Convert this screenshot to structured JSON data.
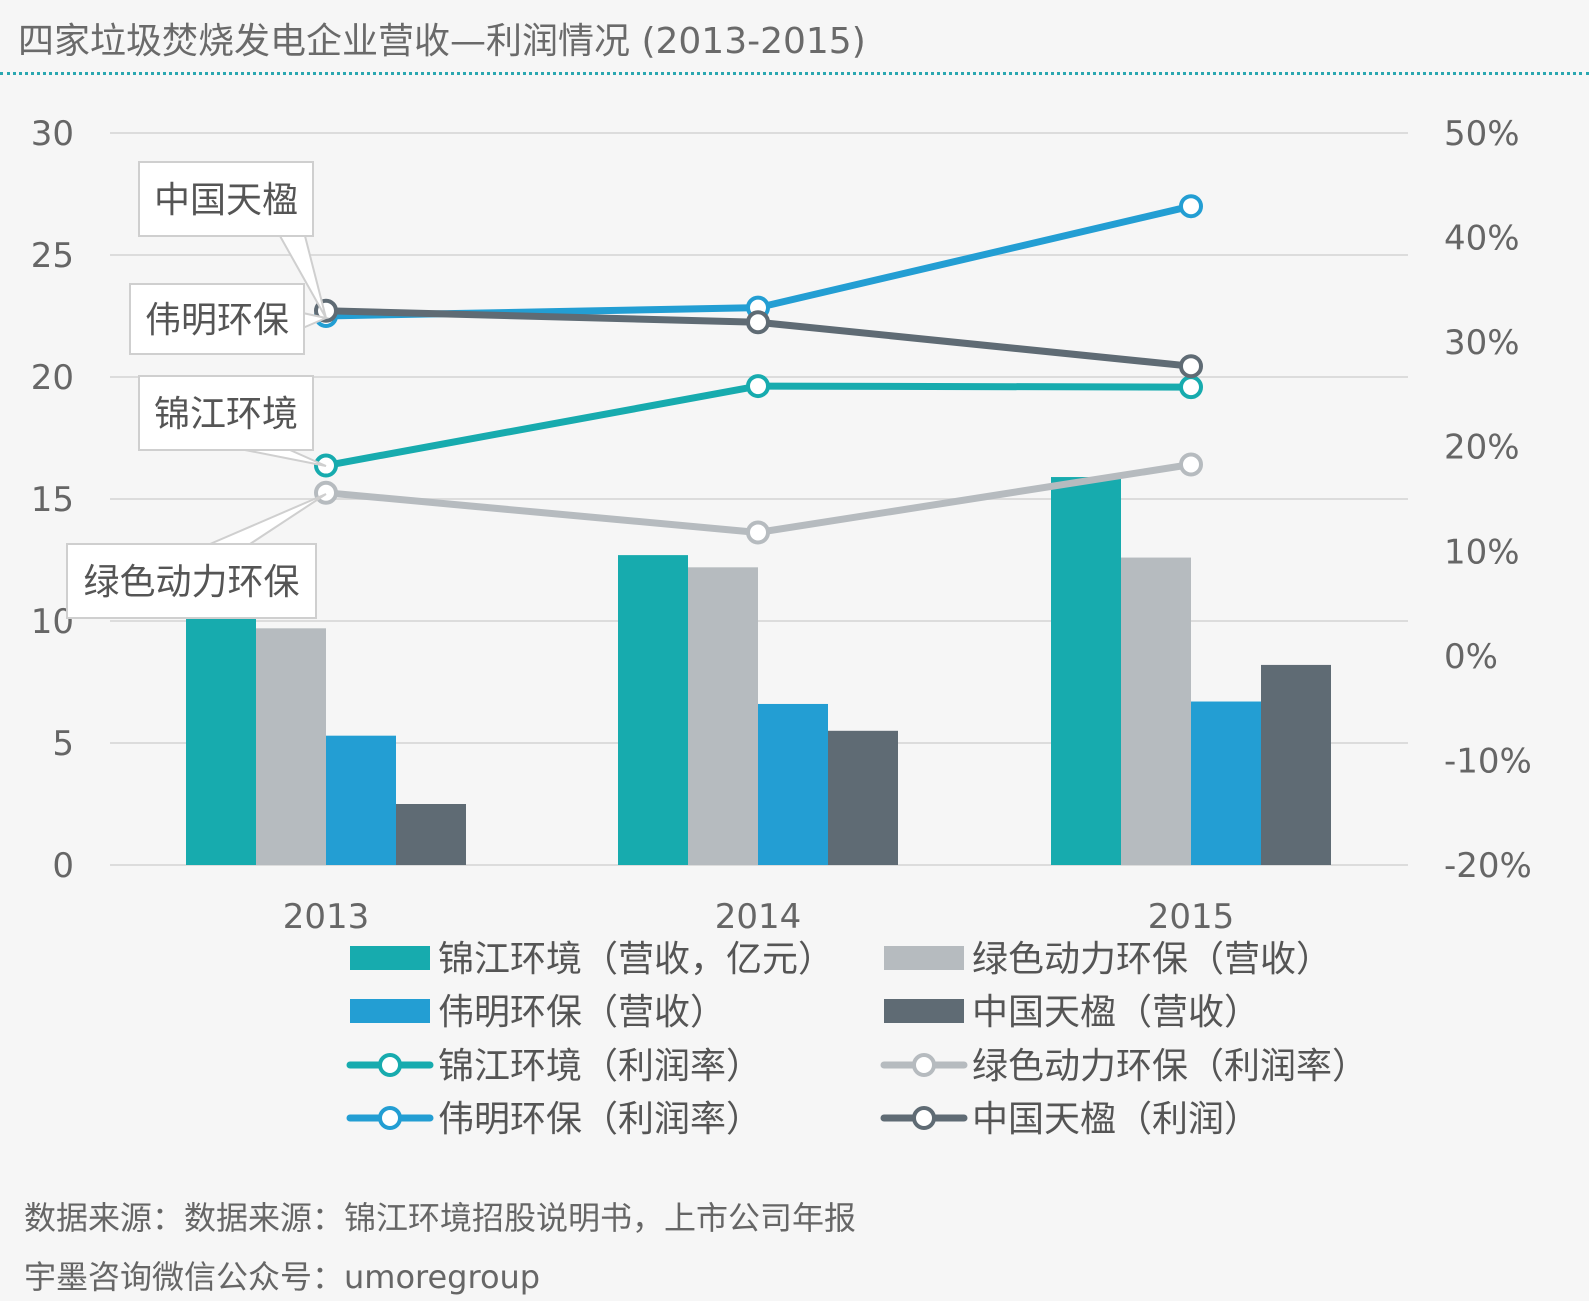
{
  "chart_data": {
    "type": "bar+line",
    "title": "四家垃圾焚烧发电企业营收—利润情况 (2013-2015)",
    "categories": [
      "2013",
      "2014",
      "2015"
    ],
    "y_left": {
      "ticks": [
        "0",
        "5",
        "10",
        "15",
        "20",
        "25",
        "30"
      ],
      "ylim": [
        0,
        30
      ]
    },
    "y_right": {
      "ticks": [
        "-20%",
        "-10%",
        "0%",
        "10%",
        "20%",
        "30%",
        "40%",
        "50%"
      ],
      "ylim": [
        -20,
        50
      ]
    },
    "bar_series": [
      {
        "name": "锦江环境（营收，亿元）",
        "color": "#17abae",
        "values": [
          10.2,
          12.7,
          15.9
        ]
      },
      {
        "name": "绿色动力环保（营收）",
        "color": "#b6bbbf",
        "values": [
          9.7,
          12.2,
          12.6
        ]
      },
      {
        "name": "伟明环保（营收）",
        "color": "#239ed3",
        "values": [
          5.3,
          6.6,
          6.7
        ]
      },
      {
        "name": "中国天楹（营收）",
        "color": "#5f6b74",
        "values": [
          2.5,
          5.5,
          8.2
        ]
      }
    ],
    "line_series": [
      {
        "name": "锦江环境（利润率）",
        "color": "#17abae",
        "values": [
          18.2,
          25.8,
          25.7
        ]
      },
      {
        "name": "绿色动力环保（利润率）",
        "color": "#b6bbbf",
        "values": [
          15.6,
          11.8,
          18.3
        ]
      },
      {
        "name": "伟明环保（利润率）",
        "color": "#239ed3",
        "values": [
          32.5,
          33.3,
          43.0
        ]
      },
      {
        "name": "中国天楹（利润）",
        "color": "#5f6b74",
        "values": [
          33.0,
          31.9,
          27.7
        ]
      }
    ],
    "annotations": [
      "中国天楹",
      "伟明环保",
      "锦江环境",
      "绿色动力环保"
    ],
    "legend": {
      "position": "bottom",
      "items": [
        "锦江环境（营收，亿元）",
        "绿色动力环保（营收）",
        "伟明环保（营收）",
        "中国天楹（营收）",
        "锦江环境（利润率）",
        "绿色动力环保（利润率）",
        "伟明环保（利润率）",
        "中国天楹（利润）"
      ]
    }
  },
  "footer": {
    "source": "数据来源：数据来源：锦江环境招股说明书，上市公司年报",
    "wechat": "宇墨咨询微信公众号：umoregroup"
  },
  "colors": {
    "grid": "#dcdcdc",
    "accent_rule": "#2aa7b0"
  }
}
